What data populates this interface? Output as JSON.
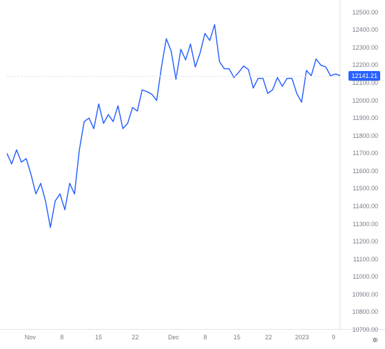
{
  "chart": {
    "type": "line",
    "line_color": "#2962ff",
    "line_width": 1.5,
    "background_color": "#ffffff",
    "grid_color": "#e0e3eb",
    "axis_text_color": "#787b86",
    "badge_bg": "#2962ff",
    "badge_text_color": "#ffffff",
    "axis_fontsize": 9,
    "y_axis": {
      "min": 10700,
      "max": 12550,
      "ticks": [
        10700,
        10800,
        10900,
        11000,
        11100,
        11200,
        11300,
        11400,
        11500,
        11600,
        11700,
        11800,
        11900,
        12000,
        12100,
        12200,
        12300,
        12400,
        12500
      ],
      "tick_labels": [
        "10700.00",
        "10800.00",
        "10900.00",
        "11000.00",
        "11100.00",
        "11200.00",
        "11300.00",
        "11400.00",
        "11500.00",
        "11600.00",
        "11700.00",
        "11800.00",
        "11900.00",
        "12000.00",
        "12100.00",
        "12200.00",
        "12300.00",
        "12400.00",
        "12500.00"
      ]
    },
    "x_axis": {
      "ticks": [
        {
          "pos": 0.07,
          "label": "Nov"
        },
        {
          "pos": 0.165,
          "label": "8"
        },
        {
          "pos": 0.275,
          "label": "15"
        },
        {
          "pos": 0.385,
          "label": "22"
        },
        {
          "pos": 0.5,
          "label": "Dec"
        },
        {
          "pos": 0.595,
          "label": "8"
        },
        {
          "pos": 0.69,
          "label": "15"
        },
        {
          "pos": 0.785,
          "label": "22"
        },
        {
          "pos": 0.885,
          "label": "2023"
        },
        {
          "pos": 0.98,
          "label": "9"
        }
      ]
    },
    "current_price": {
      "value": 12141.21,
      "label": "12141.21"
    },
    "series": [
      11700,
      11640,
      11720,
      11650,
      11670,
      11580,
      11470,
      11530,
      11430,
      11280,
      11430,
      11470,
      11380,
      11530,
      11470,
      11720,
      11880,
      11900,
      11840,
      11980,
      11870,
      11920,
      11880,
      11970,
      11840,
      11870,
      11960,
      11940,
      12060,
      12050,
      12035,
      12000,
      12190,
      12350,
      12280,
      12120,
      12290,
      12230,
      12320,
      12190,
      12270,
      12380,
      12340,
      12430,
      12220,
      12180,
      12180,
      12130,
      12160,
      12195,
      12175,
      12070,
      12125,
      12125,
      12040,
      12060,
      12130,
      12080,
      12125,
      12125,
      12040,
      11990,
      12170,
      12140,
      12235,
      12200,
      12190,
      12140,
      12150,
      12141.21
    ]
  }
}
